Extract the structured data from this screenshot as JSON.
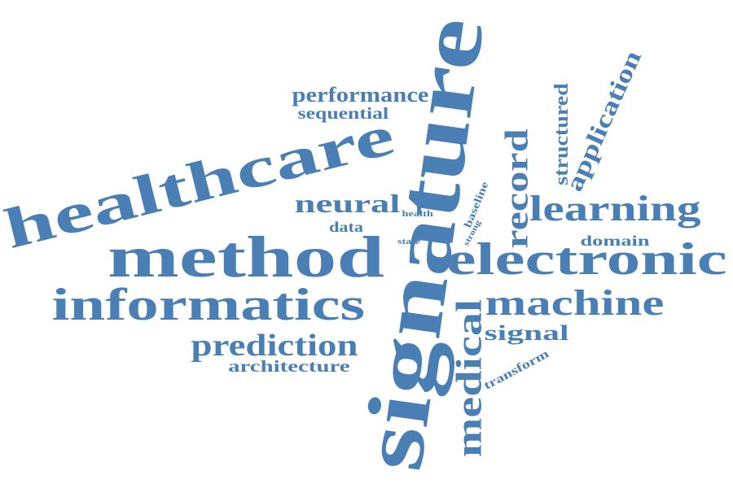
{
  "word_color": "#4a7fb5",
  "background_color": "#ffffff",
  "words": {
    "signature": "signature",
    "healthcare": "healthcare",
    "method": "method",
    "electronic": "electronic",
    "informatics": "informatics",
    "machine": "machine",
    "learning": "learning",
    "medical": "medical",
    "record": "record",
    "prediction": "prediction",
    "neural": "neural",
    "application": "application",
    "performance": "performance",
    "structured": "structured",
    "signal": "signal",
    "architecture": "architecture",
    "sequential": "sequential",
    "domain": "domain",
    "data": "data",
    "baseline": "baseline",
    "transform": "transform",
    "health": "health",
    "strong": "strong",
    "state": "state"
  }
}
